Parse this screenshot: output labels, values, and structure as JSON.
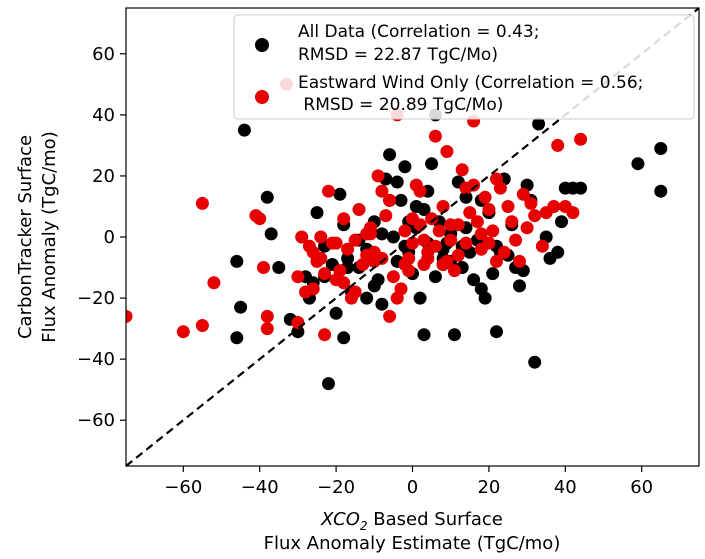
{
  "chart_data": {
    "type": "scatter",
    "title": "",
    "xlabel_line1_italic": "XCO",
    "xlabel_line1_sub": "2",
    "xlabel_line1_rest": " Based Surface",
    "xlabel_line2": "Flux Anomaly Estimate (TgC/mo)",
    "ylabel_line1": "CarbonTracker Surface",
    "ylabel_line2": "Flux Anomaly (TgC/mo)",
    "xlim": [
      -75,
      75
    ],
    "ylim": [
      -75,
      75
    ],
    "xticks": [
      -60,
      -40,
      -20,
      0,
      20,
      40,
      60
    ],
    "yticks": [
      -60,
      -40,
      -20,
      0,
      20,
      40,
      60
    ],
    "grid": false,
    "legend_placement": "top-right",
    "reference_line": {
      "style": "dashed",
      "color": "#000000",
      "from": [
        -75,
        -75
      ],
      "to": [
        75,
        75
      ]
    },
    "series": [
      {
        "name": "All Data (Correlation = 0.43;\nRMSD = 22.87 TgC/Mo)",
        "legend_line1": "All Data (Correlation = 0.43;",
        "legend_line2": "RMSD = 22.87 TgC/Mo)",
        "color": "#000000",
        "points": [
          [
            -44,
            35
          ],
          [
            -22,
            -48
          ],
          [
            -18,
            -33
          ],
          [
            -30,
            -31
          ],
          [
            -27,
            -20
          ],
          [
            -28,
            -13
          ],
          [
            -32,
            -27
          ],
          [
            -37,
            1
          ],
          [
            -35,
            -10
          ],
          [
            -38,
            13
          ],
          [
            -46,
            -33
          ],
          [
            -46,
            -8
          ],
          [
            -45,
            -23
          ],
          [
            -25,
            8
          ],
          [
            -23,
            -13
          ],
          [
            -19,
            14
          ],
          [
            -20,
            -25
          ],
          [
            -18,
            4
          ],
          [
            -17,
            -10
          ],
          [
            -16,
            -18
          ],
          [
            -14,
            -1
          ],
          [
            -12,
            -20
          ],
          [
            -11,
            -5
          ],
          [
            -10,
            5
          ],
          [
            -9,
            -14
          ],
          [
            -8,
            -22
          ],
          [
            -7,
            19
          ],
          [
            -6,
            27
          ],
          [
            -5,
            0
          ],
          [
            -4,
            -8
          ],
          [
            -3,
            12
          ],
          [
            -2,
            23
          ],
          [
            -1,
            -5
          ],
          [
            0,
            -12
          ],
          [
            1,
            3
          ],
          [
            2,
            -20
          ],
          [
            3,
            -32
          ],
          [
            4,
            15
          ],
          [
            5,
            24
          ],
          [
            6,
            40
          ],
          [
            7,
            5
          ],
          [
            8,
            -9
          ],
          [
            9,
            -2
          ],
          [
            10,
            1
          ],
          [
            11,
            -32
          ],
          [
            12,
            18
          ],
          [
            13,
            -10
          ],
          [
            14,
            3
          ],
          [
            15,
            -5
          ],
          [
            16,
            -14
          ],
          [
            17,
            -1
          ],
          [
            18,
            12
          ],
          [
            19,
            -20
          ],
          [
            20,
            8
          ],
          [
            21,
            -12
          ],
          [
            22,
            -31
          ],
          [
            23,
            -5
          ],
          [
            24,
            19
          ],
          [
            25,
            -6
          ],
          [
            26,
            4
          ],
          [
            27,
            -10
          ],
          [
            28,
            -16
          ],
          [
            29,
            -11
          ],
          [
            30,
            17
          ],
          [
            31,
            12
          ],
          [
            32,
            -41
          ],
          [
            33,
            37
          ],
          [
            35,
            0
          ],
          [
            36,
            -7
          ],
          [
            38,
            -5
          ],
          [
            39,
            5
          ],
          [
            40,
            16
          ],
          [
            42,
            16
          ],
          [
            44,
            16
          ],
          [
            59,
            24
          ],
          [
            65,
            29
          ],
          [
            65,
            15
          ],
          [
            -26,
            -15
          ],
          [
            -21,
            -9
          ],
          [
            -8,
            1
          ],
          [
            -2,
            -3
          ],
          [
            3,
            9
          ],
          [
            8,
            -7
          ],
          [
            13,
            -3
          ],
          [
            -4,
            18
          ],
          [
            -14,
            -10
          ],
          [
            6,
            -13
          ],
          [
            18,
            -17
          ],
          [
            -17,
            -7
          ],
          [
            22,
            -3
          ],
          [
            -10,
            -16
          ],
          [
            1,
            10
          ],
          [
            10,
            -8
          ],
          [
            -23,
            -3
          ],
          [
            -6,
            12
          ],
          [
            14,
            13
          ],
          [
            -12,
            -4
          ],
          [
            8,
            -4
          ],
          [
            4,
            -2
          ],
          [
            -1,
            5
          ]
        ]
      },
      {
        "name": "Eastward Wind Only (Correlation = 0.56;\nRMSD = 20.89 TgC/Mo)",
        "legend_line1": "Eastward Wind Only (Correlation = 0.56;",
        "legend_line2": " RMSD = 20.89 TgC/Mo)",
        "color": "#e60000",
        "points": [
          [
            -75,
            -26
          ],
          [
            -60,
            -31
          ],
          [
            -55,
            -29
          ],
          [
            -55,
            11
          ],
          [
            -52,
            -15
          ],
          [
            -41,
            7
          ],
          [
            -40,
            6
          ],
          [
            -39,
            -10
          ],
          [
            -38,
            -26
          ],
          [
            -38,
            -30
          ],
          [
            -33,
            50
          ],
          [
            -30,
            -13
          ],
          [
            -29,
            0
          ],
          [
            -28,
            -18
          ],
          [
            -27,
            -3
          ],
          [
            -26,
            -17
          ],
          [
            -25,
            -8
          ],
          [
            -24,
            -7
          ],
          [
            -23,
            -12
          ],
          [
            -23,
            -32
          ],
          [
            -22,
            15
          ],
          [
            -21,
            -2
          ],
          [
            -20,
            -14
          ],
          [
            -19,
            -11
          ],
          [
            -18,
            -15
          ],
          [
            -17,
            -4
          ],
          [
            -16,
            -20
          ],
          [
            -15,
            -1
          ],
          [
            -14,
            9
          ],
          [
            -13,
            -9
          ],
          [
            -12,
            -6
          ],
          [
            -11,
            1
          ],
          [
            -10,
            -8
          ],
          [
            -9,
            20
          ],
          [
            -8,
            15
          ],
          [
            -7,
            7
          ],
          [
            -6,
            -26
          ],
          [
            -5,
            -13
          ],
          [
            -4,
            -20
          ],
          [
            -3,
            -17
          ],
          [
            -2,
            -9
          ],
          [
            -1,
            -11
          ],
          [
            0,
            -2
          ],
          [
            1,
            17
          ],
          [
            2,
            15
          ],
          [
            3,
            -1
          ],
          [
            4,
            -7
          ],
          [
            5,
            6
          ],
          [
            6,
            33
          ],
          [
            7,
            2
          ],
          [
            8,
            -9
          ],
          [
            9,
            -8
          ],
          [
            10,
            4
          ],
          [
            11,
            -11
          ],
          [
            12,
            4
          ],
          [
            13,
            22
          ],
          [
            14,
            -2
          ],
          [
            15,
            8
          ],
          [
            16,
            38
          ],
          [
            17,
            5
          ],
          [
            18,
            -4
          ],
          [
            19,
            13
          ],
          [
            20,
            9
          ],
          [
            21,
            2
          ],
          [
            22,
            19
          ],
          [
            23,
            16
          ],
          [
            24,
            -5
          ],
          [
            25,
            10
          ],
          [
            26,
            5
          ],
          [
            27,
            -1
          ],
          [
            28,
            -8
          ],
          [
            29,
            14
          ],
          [
            30,
            3
          ],
          [
            31,
            11
          ],
          [
            32,
            7
          ],
          [
            34,
            -3
          ],
          [
            35,
            8
          ],
          [
            37,
            10
          ],
          [
            38,
            30
          ],
          [
            40,
            10
          ],
          [
            42,
            8
          ],
          [
            44,
            32
          ],
          [
            -4,
            40
          ],
          [
            -30,
            -28
          ],
          [
            -20,
            -2
          ],
          [
            -10,
            -5
          ],
          [
            0,
            6
          ],
          [
            10,
            -1
          ],
          [
            20,
            -2
          ],
          [
            -15,
            -18
          ],
          [
            -6,
            12
          ],
          [
            4,
            -5
          ],
          [
            14,
            16
          ],
          [
            -24,
            0
          ],
          [
            -12,
            1
          ],
          [
            8,
            10
          ],
          [
            18,
            1
          ],
          [
            -8,
            -7
          ],
          [
            2,
            4
          ],
          [
            12,
            -6
          ],
          [
            -18,
            6
          ],
          [
            6,
            -3
          ],
          [
            16,
            17
          ],
          [
            -2,
            2
          ],
          [
            -26,
            -5
          ],
          [
            22,
            -8
          ],
          [
            -1,
            -7
          ],
          [
            3,
            -9
          ],
          [
            -11,
            3
          ],
          [
            9,
            28
          ]
        ]
      }
    ]
  }
}
